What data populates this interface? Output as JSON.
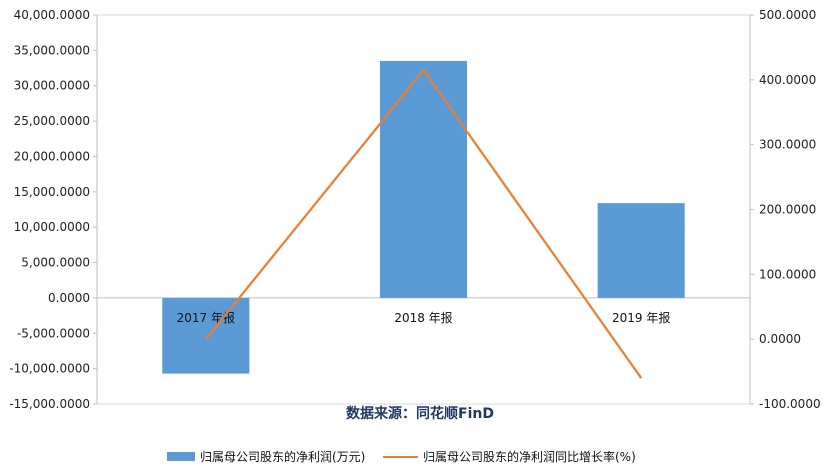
{
  "chart_data": {
    "type": "bar",
    "categories": [
      "2017 年报",
      "2018 年报",
      "2019 年报"
    ],
    "series": [
      {
        "name": "归属母公司股东的净利润(万元)",
        "type": "bar",
        "axis": "left",
        "values": [
          -10700,
          33500,
          13400
        ],
        "color": "#5b9bd5"
      },
      {
        "name": "归属母公司股东的净利润同比增长率(%)",
        "type": "line",
        "axis": "right",
        "values": [
          0,
          415,
          -60
        ],
        "color": "#ed7d31"
      }
    ],
    "left_axis": {
      "min": -15000,
      "max": 40000,
      "step": 5000,
      "tick_labels": [
        "-15,000.0000",
        "-10,000.0000",
        "-5,000.0000",
        "0.0000",
        "5,000.0000",
        "10,000.0000",
        "15,000.0000",
        "20,000.0000",
        "25,000.0000",
        "30,000.0000",
        "35,000.0000",
        "40,000.0000"
      ]
    },
    "right_axis": {
      "min": -100,
      "max": 500,
      "step": 100,
      "tick_labels": [
        "-100.0000",
        "0.0000",
        "100.0000",
        "200.0000",
        "300.0000",
        "400.0000",
        "500.0000"
      ]
    },
    "source_text": "数据来源：同花顺FinD",
    "legend_position": "bottom",
    "grid": false
  }
}
